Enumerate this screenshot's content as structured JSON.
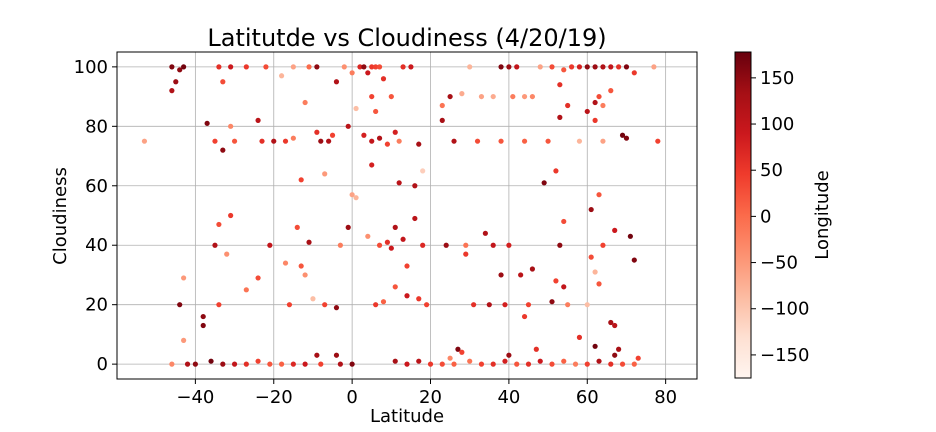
{
  "chart_data": {
    "type": "scatter",
    "title": "Latitutde vs Cloudiness (4/20/19)",
    "xlabel": "Latitude",
    "ylabel": "Cloudiness",
    "xlim": [
      -60,
      88
    ],
    "ylim": [
      -5,
      105
    ],
    "xticks": [
      -40,
      -20,
      0,
      20,
      40,
      60,
      80
    ],
    "yticks": [
      0,
      20,
      40,
      60,
      80,
      100
    ],
    "grid": true,
    "colorbar": {
      "label": "Longitude",
      "range": [
        -175,
        178
      ],
      "ticks": [
        150,
        100,
        50,
        0,
        -50,
        -100,
        -150
      ],
      "tick_labels": [
        "150",
        "100",
        "50",
        "0",
        "−50",
        "−100",
        "−150"
      ],
      "colormap": "Reds",
      "low_color": "#fff5f0",
      "high_color": "#67000d"
    },
    "points": [
      {
        "x": -46,
        "y": 100,
        "c": 160
      },
      {
        "x": -44,
        "y": 99,
        "c": 150
      },
      {
        "x": -43,
        "y": 100,
        "c": 170
      },
      {
        "x": -45,
        "y": 95,
        "c": 140
      },
      {
        "x": -46,
        "y": 92,
        "c": 120
      },
      {
        "x": -53,
        "y": 75,
        "c": -60
      },
      {
        "x": -37,
        "y": 81,
        "c": 160
      },
      {
        "x": -34,
        "y": 100,
        "c": 60
      },
      {
        "x": -31,
        "y": 100,
        "c": 90
      },
      {
        "x": -33,
        "y": 95,
        "c": 30
      },
      {
        "x": -31,
        "y": 80,
        "c": -30
      },
      {
        "x": -35,
        "y": 75,
        "c": 40
      },
      {
        "x": -33,
        "y": 72,
        "c": 150
      },
      {
        "x": -30,
        "y": 75,
        "c": 20
      },
      {
        "x": -27,
        "y": 100,
        "c": 50
      },
      {
        "x": -24,
        "y": 82,
        "c": 110
      },
      {
        "x": -23,
        "y": 75,
        "c": 60
      },
      {
        "x": -22,
        "y": 100,
        "c": 30
      },
      {
        "x": -20,
        "y": 75,
        "c": 120
      },
      {
        "x": -17,
        "y": 75,
        "c": 50
      },
      {
        "x": -15,
        "y": 76,
        "c": -20
      },
      {
        "x": -18,
        "y": 97,
        "c": -80
      },
      {
        "x": -15,
        "y": 100,
        "c": -60
      },
      {
        "x": -12,
        "y": 88,
        "c": -20
      },
      {
        "x": -13,
        "y": 62,
        "c": 40
      },
      {
        "x": -11,
        "y": 100,
        "c": 0
      },
      {
        "x": -9,
        "y": 100,
        "c": 150
      },
      {
        "x": -8,
        "y": 75,
        "c": 140
      },
      {
        "x": -6,
        "y": 75,
        "c": 120
      },
      {
        "x": -9,
        "y": 78,
        "c": 60
      },
      {
        "x": -5,
        "y": 77,
        "c": 40
      },
      {
        "x": -4,
        "y": 95,
        "c": 120
      },
      {
        "x": -2,
        "y": 100,
        "c": -40
      },
      {
        "x": -1,
        "y": 80,
        "c": 110
      },
      {
        "x": 0,
        "y": 98,
        "c": -20
      },
      {
        "x": 1,
        "y": 86,
        "c": -90
      },
      {
        "x": 2,
        "y": 100,
        "c": 70
      },
      {
        "x": 3,
        "y": 100,
        "c": 150
      },
      {
        "x": 4,
        "y": 98,
        "c": 90
      },
      {
        "x": 5,
        "y": 100,
        "c": 50
      },
      {
        "x": 6,
        "y": 100,
        "c": 40
      },
      {
        "x": 7,
        "y": 100,
        "c": 30
      },
      {
        "x": 8,
        "y": 96,
        "c": 60
      },
      {
        "x": 5,
        "y": 90,
        "c": 40
      },
      {
        "x": 6,
        "y": 85,
        "c": 20
      },
      {
        "x": 3,
        "y": 77,
        "c": 80
      },
      {
        "x": 5,
        "y": 75,
        "c": 100
      },
      {
        "x": 7,
        "y": 76,
        "c": 120
      },
      {
        "x": 9,
        "y": 74,
        "c": 40
      },
      {
        "x": 10,
        "y": 90,
        "c": 20
      },
      {
        "x": 11,
        "y": 78,
        "c": 80
      },
      {
        "x": 12,
        "y": 75,
        "c": -20
      },
      {
        "x": 13,
        "y": 100,
        "c": 60
      },
      {
        "x": 15,
        "y": 100,
        "c": 90
      },
      {
        "x": 17,
        "y": 74,
        "c": 130
      },
      {
        "x": 16,
        "y": 60,
        "c": 120
      },
      {
        "x": 18,
        "y": 65,
        "c": -110
      },
      {
        "x": 12,
        "y": 61,
        "c": 110
      },
      {
        "x": 5,
        "y": 67,
        "c": 80
      },
      {
        "x": -7,
        "y": 64,
        "c": -50
      },
      {
        "x": -14,
        "y": 46,
        "c": 30
      },
      {
        "x": -11,
        "y": 41,
        "c": 130
      },
      {
        "x": -21,
        "y": 40,
        "c": 100
      },
      {
        "x": -35,
        "y": 40,
        "c": 120
      },
      {
        "x": -34,
        "y": 47,
        "c": 30
      },
      {
        "x": -31,
        "y": 50,
        "c": 50
      },
      {
        "x": -32,
        "y": 37,
        "c": -40
      },
      {
        "x": -43,
        "y": 29,
        "c": -50
      },
      {
        "x": -24,
        "y": 29,
        "c": 30
      },
      {
        "x": -27,
        "y": 25,
        "c": -10
      },
      {
        "x": -17,
        "y": 34,
        "c": -30
      },
      {
        "x": -13,
        "y": 33,
        "c": 20
      },
      {
        "x": -12,
        "y": 30,
        "c": -40
      },
      {
        "x": -16,
        "y": 20,
        "c": 40
      },
      {
        "x": -10,
        "y": 22,
        "c": -90
      },
      {
        "x": -7,
        "y": 20,
        "c": 40
      },
      {
        "x": -4,
        "y": 19,
        "c": 150
      },
      {
        "x": -1,
        "y": 46,
        "c": 140
      },
      {
        "x": -3,
        "y": 40,
        "c": -20
      },
      {
        "x": 0,
        "y": 57,
        "c": -60
      },
      {
        "x": 1,
        "y": 56,
        "c": -80
      },
      {
        "x": 4,
        "y": 43,
        "c": -40
      },
      {
        "x": 7,
        "y": 40,
        "c": 30
      },
      {
        "x": 9,
        "y": 41,
        "c": 60
      },
      {
        "x": 10,
        "y": 39,
        "c": 90
      },
      {
        "x": 11,
        "y": 46,
        "c": 120
      },
      {
        "x": 13,
        "y": 42,
        "c": 100
      },
      {
        "x": 14,
        "y": 33,
        "c": 40
      },
      {
        "x": 16,
        "y": 49,
        "c": 110
      },
      {
        "x": 18,
        "y": 40,
        "c": 70
      },
      {
        "x": 19,
        "y": 20,
        "c": 40
      },
      {
        "x": 17,
        "y": 22,
        "c": 50
      },
      {
        "x": 11,
        "y": 26,
        "c": 20
      },
      {
        "x": 14,
        "y": 23,
        "c": 90
      },
      {
        "x": 6,
        "y": 20,
        "c": 50
      },
      {
        "x": 8,
        "y": 21,
        "c": 10
      },
      {
        "x": -44,
        "y": 20,
        "c": 160
      },
      {
        "x": -43,
        "y": 8,
        "c": -50
      },
      {
        "x": -38,
        "y": 16,
        "c": 150
      },
      {
        "x": -38,
        "y": 13,
        "c": 160
      },
      {
        "x": -34,
        "y": 20,
        "c": 40
      },
      {
        "x": -9,
        "y": 3,
        "c": 130
      },
      {
        "x": -4,
        "y": 3,
        "c": 140
      },
      {
        "x": 23,
        "y": 87,
        "c": -10
      },
      {
        "x": 25,
        "y": 90,
        "c": 130
      },
      {
        "x": 28,
        "y": 91,
        "c": -70
      },
      {
        "x": 26,
        "y": 75,
        "c": 120
      },
      {
        "x": 23,
        "y": 82,
        "c": 130
      },
      {
        "x": 30,
        "y": 100,
        "c": -80
      },
      {
        "x": 33,
        "y": 90,
        "c": -60
      },
      {
        "x": 36,
        "y": 90,
        "c": -70
      },
      {
        "x": 38,
        "y": 100,
        "c": 160
      },
      {
        "x": 40,
        "y": 100,
        "c": 140
      },
      {
        "x": 42,
        "y": 100,
        "c": 100
      },
      {
        "x": 41,
        "y": 90,
        "c": -20
      },
      {
        "x": 44,
        "y": 90,
        "c": -50
      },
      {
        "x": 46,
        "y": 90,
        "c": -30
      },
      {
        "x": 48,
        "y": 100,
        "c": -60
      },
      {
        "x": 51,
        "y": 100,
        "c": 30
      },
      {
        "x": 53,
        "y": 94,
        "c": 60
      },
      {
        "x": 54,
        "y": 99,
        "c": 20
      },
      {
        "x": 56,
        "y": 100,
        "c": 50
      },
      {
        "x": 58,
        "y": 100,
        "c": 80
      },
      {
        "x": 60,
        "y": 100,
        "c": 150
      },
      {
        "x": 62,
        "y": 100,
        "c": 140
      },
      {
        "x": 64,
        "y": 100,
        "c": 120
      },
      {
        "x": 66,
        "y": 100,
        "c": 100
      },
      {
        "x": 68,
        "y": 100,
        "c": 60
      },
      {
        "x": 70,
        "y": 100,
        "c": 160
      },
      {
        "x": 72,
        "y": 98,
        "c": 50
      },
      {
        "x": 77,
        "y": 100,
        "c": -60
      },
      {
        "x": 62,
        "y": 88,
        "c": 120
      },
      {
        "x": 63,
        "y": 90,
        "c": 30
      },
      {
        "x": 64,
        "y": 87,
        "c": -20
      },
      {
        "x": 66,
        "y": 92,
        "c": 20
      },
      {
        "x": 60,
        "y": 85,
        "c": 110
      },
      {
        "x": 62,
        "y": 82,
        "c": 50
      },
      {
        "x": 55,
        "y": 87,
        "c": 60
      },
      {
        "x": 53,
        "y": 83,
        "c": 120
      },
      {
        "x": 69,
        "y": 77,
        "c": 170
      },
      {
        "x": 70,
        "y": 76,
        "c": 160
      },
      {
        "x": 78,
        "y": 75,
        "c": 40
      },
      {
        "x": 32,
        "y": 75,
        "c": 30
      },
      {
        "x": 38,
        "y": 75,
        "c": 20
      },
      {
        "x": 44,
        "y": 75,
        "c": 10
      },
      {
        "x": 50,
        "y": 75,
        "c": 20
      },
      {
        "x": 58,
        "y": 75,
        "c": -80
      },
      {
        "x": 64,
        "y": 75,
        "c": -60
      },
      {
        "x": 52,
        "y": 65,
        "c": 50
      },
      {
        "x": 49,
        "y": 61,
        "c": 160
      },
      {
        "x": 61,
        "y": 52,
        "c": 140
      },
      {
        "x": 63,
        "y": 57,
        "c": 20
      },
      {
        "x": 54,
        "y": 48,
        "c": 30
      },
      {
        "x": 67,
        "y": 45,
        "c": 90
      },
      {
        "x": 71,
        "y": 43,
        "c": 170
      },
      {
        "x": 64,
        "y": 40,
        "c": 40
      },
      {
        "x": 53,
        "y": 40,
        "c": 150
      },
      {
        "x": 40,
        "y": 40,
        "c": 80
      },
      {
        "x": 34,
        "y": 44,
        "c": 120
      },
      {
        "x": 36,
        "y": 40,
        "c": 100
      },
      {
        "x": 24,
        "y": 40,
        "c": 140
      },
      {
        "x": 29,
        "y": 40,
        "c": -10
      },
      {
        "x": 72,
        "y": 35,
        "c": 160
      },
      {
        "x": 61,
        "y": 36,
        "c": 30
      },
      {
        "x": 62,
        "y": 31,
        "c": -80
      },
      {
        "x": 63,
        "y": 27,
        "c": 20
      },
      {
        "x": 52,
        "y": 28,
        "c": 40
      },
      {
        "x": 54,
        "y": 26,
        "c": 100
      },
      {
        "x": 43,
        "y": 30,
        "c": 110
      },
      {
        "x": 46,
        "y": 32,
        "c": 130
      },
      {
        "x": 38,
        "y": 30,
        "c": 140
      },
      {
        "x": 29,
        "y": 37,
        "c": 50
      },
      {
        "x": 31,
        "y": 20,
        "c": 60
      },
      {
        "x": 35,
        "y": 20,
        "c": 120
      },
      {
        "x": 39,
        "y": 20,
        "c": 80
      },
      {
        "x": 45,
        "y": 20,
        "c": 40
      },
      {
        "x": 51,
        "y": 21,
        "c": 150
      },
      {
        "x": 55,
        "y": 20,
        "c": -20
      },
      {
        "x": 60,
        "y": 20,
        "c": -90
      },
      {
        "x": 44,
        "y": 16,
        "c": 50
      },
      {
        "x": 47,
        "y": 5,
        "c": 60
      },
      {
        "x": 58,
        "y": 9,
        "c": 60
      },
      {
        "x": 66,
        "y": 14,
        "c": 130
      },
      {
        "x": 67,
        "y": 13,
        "c": 110
      },
      {
        "x": 62,
        "y": 6,
        "c": 170
      },
      {
        "x": 68,
        "y": 5,
        "c": 130
      },
      {
        "x": 67,
        "y": 3,
        "c": 150
      },
      {
        "x": 27,
        "y": 5,
        "c": 160
      },
      {
        "x": 28,
        "y": 4,
        "c": 40
      },
      {
        "x": 40,
        "y": 3,
        "c": 140
      },
      {
        "x": 25,
        "y": 2,
        "c": -30
      },
      {
        "x": 73,
        "y": 2,
        "c": 40
      },
      {
        "x": -40,
        "y": 0,
        "c": 150
      },
      {
        "x": -36,
        "y": 1,
        "c": 170
      },
      {
        "x": -33,
        "y": 0,
        "c": 140
      },
      {
        "x": -30,
        "y": 0,
        "c": 100
      },
      {
        "x": -27,
        "y": 0,
        "c": 60
      },
      {
        "x": -24,
        "y": 1,
        "c": 40
      },
      {
        "x": -21,
        "y": 0,
        "c": 20
      },
      {
        "x": -18,
        "y": 0,
        "c": 10
      },
      {
        "x": -15,
        "y": 0,
        "c": 70
      },
      {
        "x": -12,
        "y": 0,
        "c": 90
      },
      {
        "x": -8,
        "y": 0,
        "c": 40
      },
      {
        "x": -3,
        "y": 0,
        "c": 120
      },
      {
        "x": 0,
        "y": 0,
        "c": 160
      },
      {
        "x": 11,
        "y": 1,
        "c": 130
      },
      {
        "x": 14,
        "y": 0,
        "c": 90
      },
      {
        "x": 17,
        "y": 1,
        "c": 110
      },
      {
        "x": 20,
        "y": 0,
        "c": 50
      },
      {
        "x": 23,
        "y": 0,
        "c": 30
      },
      {
        "x": 26,
        "y": 0,
        "c": 10
      },
      {
        "x": 30,
        "y": 1,
        "c": -10
      },
      {
        "x": 33,
        "y": 0,
        "c": 40
      },
      {
        "x": 36,
        "y": 0,
        "c": 60
      },
      {
        "x": 39,
        "y": 1,
        "c": 80
      },
      {
        "x": 42,
        "y": 0,
        "c": 20
      },
      {
        "x": 45,
        "y": 0,
        "c": 60
      },
      {
        "x": 48,
        "y": 1,
        "c": 90
      },
      {
        "x": 51,
        "y": 0,
        "c": 30
      },
      {
        "x": 54,
        "y": 1,
        "c": 10
      },
      {
        "x": 57,
        "y": 0,
        "c": -20
      },
      {
        "x": 60,
        "y": 0,
        "c": 40
      },
      {
        "x": 63,
        "y": 1,
        "c": 120
      },
      {
        "x": 66,
        "y": 0,
        "c": 60
      },
      {
        "x": 69,
        "y": 0,
        "c": 30
      },
      {
        "x": 72,
        "y": 0,
        "c": 10
      },
      {
        "x": -46,
        "y": 0,
        "c": -30
      },
      {
        "x": -42,
        "y": 0,
        "c": 120
      }
    ]
  }
}
